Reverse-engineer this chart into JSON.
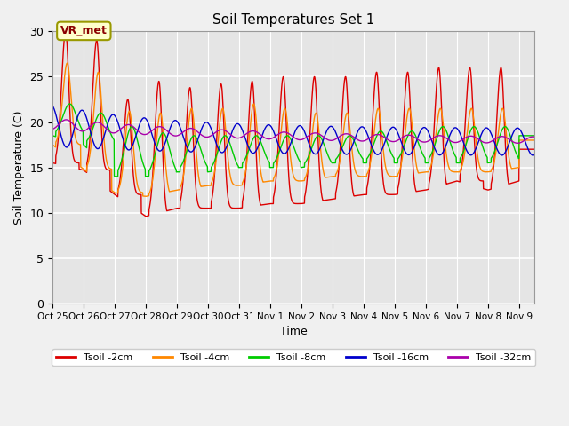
{
  "title": "Soil Temperatures Set 1",
  "xlabel": "Time",
  "ylabel": "Soil Temperature (C)",
  "ylim": [
    0,
    30
  ],
  "xlim_days": [
    0,
    15.5
  ],
  "tick_labels": [
    "Oct 25",
    "Oct 26",
    "Oct 27",
    "Oct 28",
    "Oct 29",
    "Oct 30",
    "Oct 31",
    "Nov 1",
    "Nov 2",
    "Nov 3",
    "Nov 4",
    "Nov 5",
    "Nov 6",
    "Nov 7",
    "Nov 8",
    "Nov 9"
  ],
  "annotation": "VR_met",
  "bg_color": "#e5e5e5",
  "fig_color": "#f0f0f0",
  "series_colors": [
    "#dd0000",
    "#ff8800",
    "#00cc00",
    "#0000cc",
    "#aa00aa"
  ],
  "series_labels": [
    "Tsoil -2cm",
    "Tsoil -4cm",
    "Tsoil -8cm",
    "Tsoil -16cm",
    "Tsoil -32cm"
  ]
}
